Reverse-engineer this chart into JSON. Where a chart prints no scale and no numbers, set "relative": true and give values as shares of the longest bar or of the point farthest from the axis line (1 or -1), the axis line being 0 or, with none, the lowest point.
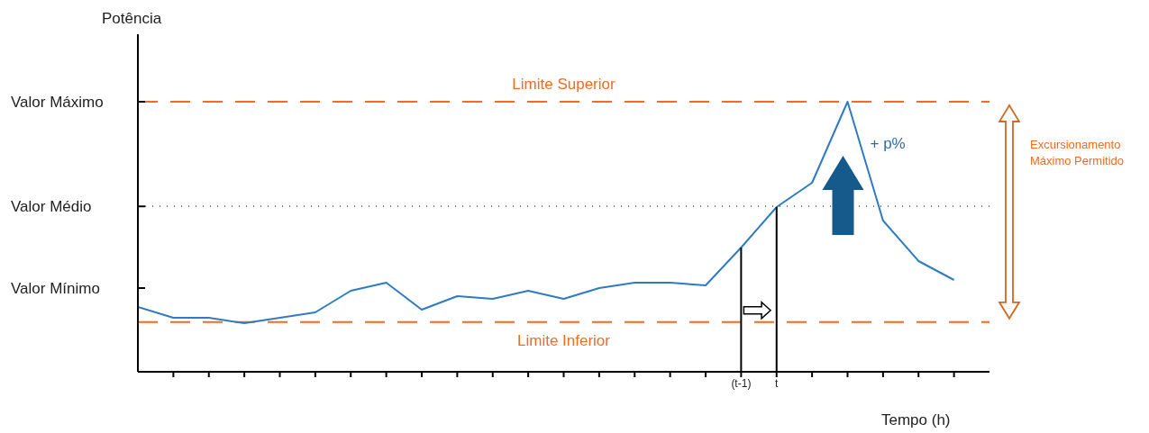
{
  "chart_data": {
    "type": "line",
    "relative": true,
    "ylabel": "Potência",
    "xlabel": "Tempo (h)",
    "categories": [
      null,
      null,
      null,
      null,
      null,
      null,
      null,
      null,
      null,
      null,
      null,
      null,
      null,
      null,
      null,
      null,
      null,
      "(t-1)",
      "t",
      null,
      null,
      null,
      null,
      null
    ],
    "series": [
      {
        "color": "#2e7bc4",
        "values": [
          0.24,
          0.2,
          0.2,
          0.18,
          0.2,
          0.22,
          0.3,
          0.33,
          0.23,
          0.28,
          0.27,
          0.3,
          0.27,
          0.31,
          0.33,
          0.33,
          0.32,
          0.46,
          0.61,
          0.7,
          1,
          0.56,
          0.41,
          0.34
        ]
      }
    ],
    "marker": "none",
    "line_style": "solid",
    "grid": false,
    "ref_lines": [
      {
        "axis": "y",
        "value": 1,
        "label": "Limite Superior",
        "color": "#f26b21",
        "line_style": "dashed"
      },
      {
        "axis": "y",
        "value": 0.184,
        "label": "Limite Inferior",
        "color": "#f26b21",
        "line_style": "dashed"
      },
      {
        "axis": "y",
        "value": 0.613,
        "color": "#333333",
        "line_style": "dotted"
      }
    ],
    "annotations": [
      "Valor Máximo",
      "Valor Médio",
      "Valor Mínimo",
      "+ p%",
      "Excursionamento Máximo Permitido"
    ]
  }
}
